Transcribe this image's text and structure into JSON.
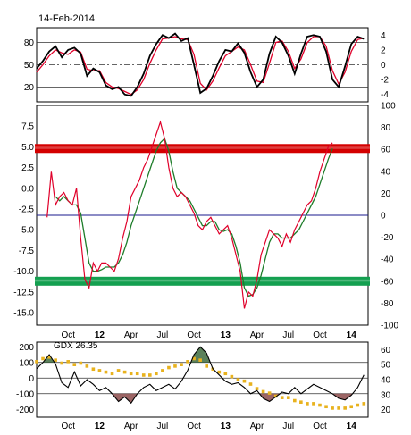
{
  "date_label": "14-Feb-2014",
  "legend_label": "GDX 26.35",
  "colors": {
    "black_line": "#000000",
    "red_line": "#e0002a",
    "green_line": "#1e7d2a",
    "red_band": "#d40000",
    "green_band": "#14a050",
    "zero_line": "#1a1a8c",
    "gold_dots": "#e8b21e",
    "fill_pos": "#3e6b3e",
    "fill_neg": "#8b4a4a"
  },
  "x_axis": {
    "labels": [
      {
        "text": "Oct",
        "month": 3,
        "bold": false
      },
      {
        "text": "12",
        "month": 6,
        "bold": true
      },
      {
        "text": "Apr",
        "month": 9,
        "bold": false
      },
      {
        "text": "Jul",
        "month": 12,
        "bold": false
      },
      {
        "text": "Oct",
        "month": 15,
        "bold": false
      },
      {
        "text": "13",
        "month": 18,
        "bold": true
      },
      {
        "text": "Apr",
        "month": 21,
        "bold": false
      },
      {
        "text": "Jul",
        "month": 24,
        "bold": false
      },
      {
        "text": "Oct",
        "month": 27,
        "bold": false
      },
      {
        "text": "14",
        "month": 30,
        "bold": true
      }
    ],
    "range": [
      0,
      31.6
    ]
  },
  "chart_data": [
    {
      "type": "line",
      "panel": "stochastic",
      "left_ticks": [
        "80",
        "50",
        "20"
      ],
      "right_ticks": [
        "4",
        "2",
        "0",
        "-2",
        "-4"
      ],
      "ylim": [
        0,
        100
      ],
      "ylim_right": [
        -5,
        5
      ],
      "hlines": [
        80,
        50,
        20
      ],
      "x": [
        0,
        0.6,
        1.2,
        1.8,
        2.4,
        3.0,
        3.6,
        4.2,
        4.8,
        5.4,
        6.0,
        6.6,
        7.2,
        7.8,
        8.4,
        9.0,
        9.6,
        10.2,
        10.8,
        11.4,
        12.0,
        12.6,
        13.2,
        13.8,
        14.4,
        15.0,
        15.6,
        16.2,
        16.8,
        17.4,
        18.0,
        18.6,
        19.2,
        19.8,
        20.4,
        21.0,
        21.6,
        22.2,
        22.8,
        23.4,
        24.0,
        24.6,
        25.2,
        25.8,
        26.4,
        27.0,
        27.6,
        28.2,
        28.8,
        29.4,
        30.0,
        30.6,
        31.2
      ],
      "series": [
        {
          "values": [
            45,
            55,
            68,
            75,
            60,
            70,
            73,
            65,
            35,
            45,
            40,
            22,
            17,
            20,
            10,
            8,
            20,
            38,
            62,
            78,
            90,
            86,
            92,
            82,
            86,
            50,
            12,
            18,
            35,
            55,
            70,
            68,
            79,
            66,
            40,
            20,
            30,
            65,
            88,
            80,
            62,
            38,
            65,
            88,
            90,
            88,
            68,
            30,
            20,
            48,
            78,
            88,
            85
          ]
        },
        {
          "values": [
            40,
            50,
            62,
            70,
            66,
            64,
            70,
            67,
            44,
            42,
            42,
            26,
            20,
            18,
            14,
            10,
            16,
            30,
            52,
            70,
            85,
            86,
            88,
            85,
            84,
            64,
            25,
            16,
            28,
            46,
            62,
            68,
            74,
            70,
            50,
            28,
            26,
            52,
            80,
            82,
            68,
            45,
            58,
            80,
            88,
            88,
            75,
            42,
            24,
            40,
            68,
            84,
            86
          ]
        }
      ]
    },
    {
      "type": "line",
      "panel": "momentum",
      "left_ticks": [
        "7.5",
        "5.0",
        "2.5",
        "0.0",
        "-2.5",
        "-5.0",
        "-7.5",
        "-10.0",
        "-12.5",
        "-15.0"
      ],
      "right_ticks": [
        "100",
        "80",
        "60",
        "40",
        "20",
        "0",
        "-20",
        "-40",
        "-60",
        "-80",
        "-100"
      ],
      "ylim": [
        -16.5,
        10
      ],
      "ylim_right": [
        -100,
        100
      ],
      "bands": [
        {
          "y": 4.8,
          "color_key": "red_band"
        },
        {
          "y": -11.2,
          "color_key": "green_band"
        }
      ],
      "zero_line_right": 0,
      "x": [
        1.0,
        1.4,
        1.8,
        2.2,
        2.6,
        3.0,
        3.4,
        3.8,
        4.2,
        4.6,
        5.0,
        5.4,
        5.8,
        6.2,
        6.6,
        7.0,
        7.4,
        7.8,
        8.2,
        8.6,
        9.0,
        9.4,
        9.8,
        10.2,
        10.6,
        11.0,
        11.4,
        11.8,
        12.2,
        12.6,
        13.0,
        13.4,
        13.8,
        14.2,
        14.6,
        15.0,
        15.4,
        15.8,
        16.2,
        16.6,
        17.0,
        17.4,
        17.8,
        18.2,
        18.6,
        19.0,
        19.4,
        19.8,
        20.2,
        20.6,
        21.0,
        21.4,
        21.8,
        22.2,
        22.6,
        23.0,
        23.4,
        23.8,
        24.2,
        24.6,
        25.0,
        25.4,
        25.8,
        26.2,
        26.6,
        27.0,
        27.4,
        27.8,
        28.2,
        28.6,
        29.0,
        29.4,
        29.8,
        30.2,
        30.6,
        31.0
      ],
      "series": [
        {
          "values": [
            -3.5,
            2.0,
            -2.0,
            -1.0,
            -0.5,
            -1.5,
            -2.0,
            0.0,
            -6.0,
            -11.0,
            -12.0,
            -9.0,
            -10.0,
            -9.0,
            -9.0,
            -9.5,
            -10.0,
            -8.5,
            -6.0,
            -4.0,
            -1.0,
            0.0,
            1.0,
            2.5,
            3.5,
            5.0,
            6.5,
            8.0,
            6.0,
            2.5,
            0.0,
            -1.0,
            -0.5,
            -1.0,
            -2.0,
            -3.0,
            -4.5,
            -5.0,
            -4.0,
            -3.5,
            -4.5,
            -5.5,
            -5.0,
            -4.5,
            -6.0,
            -8.0,
            -10.0,
            -14.5,
            -12.5,
            -13.0,
            -11.0,
            -8.0,
            -6.5,
            -5.0,
            -5.5,
            -6.0,
            -7.0,
            -5.5,
            -6.5,
            -5.0,
            -4.0,
            -3.0,
            -2.0,
            -1.5,
            0.0,
            2.0,
            3.5,
            5.0,
            5.5,
            null,
            null,
            null,
            null,
            null,
            null,
            null
          ]
        },
        {
          "values": [
            null,
            null,
            -1.0,
            -1.5,
            -1.0,
            -1.5,
            -2.0,
            -2.0,
            -3.0,
            -6.0,
            -9.0,
            -10.0,
            -10.0,
            -9.8,
            -9.5,
            -9.5,
            -9.5,
            -9.0,
            -8.0,
            -6.5,
            -4.5,
            -3.0,
            -1.5,
            0.0,
            1.5,
            3.0,
            4.5,
            5.5,
            6.0,
            4.5,
            2.0,
            0.0,
            -0.5,
            -1.0,
            -1.5,
            -2.5,
            -3.5,
            -4.5,
            -4.5,
            -4.0,
            -4.0,
            -5.0,
            -5.2,
            -5.0,
            -5.5,
            -7.0,
            -9.0,
            -12.0,
            -13.0,
            -12.8,
            -12.0,
            -10.5,
            -8.5,
            -6.5,
            -5.5,
            -5.5,
            -6.0,
            -6.0,
            -6.0,
            -5.5,
            -5.0,
            -4.0,
            -3.0,
            -2.0,
            -1.0,
            0.5,
            2.0,
            3.5,
            4.8,
            null,
            null,
            null,
            null,
            null,
            null,
            null
          ]
        }
      ]
    },
    {
      "type": "line",
      "panel": "oscillator",
      "left_ticks": [
        "200",
        "100",
        "0",
        "-100",
        "-200"
      ],
      "right_ticks": [
        "60",
        "50",
        "40",
        "30",
        "20"
      ],
      "ylim": [
        -250,
        230
      ],
      "ylim_right": [
        15,
        65
      ],
      "hlines": [
        100,
        0,
        -100
      ],
      "x": [
        0,
        0.6,
        1.2,
        1.8,
        2.4,
        3.0,
        3.6,
        4.2,
        4.8,
        5.4,
        6.0,
        6.6,
        7.2,
        7.8,
        8.4,
        9.0,
        9.6,
        10.2,
        10.8,
        11.4,
        12.0,
        12.6,
        13.2,
        13.8,
        14.4,
        15.0,
        15.6,
        16.2,
        16.8,
        17.4,
        18.0,
        18.6,
        19.2,
        19.8,
        20.4,
        21.0,
        21.6,
        22.2,
        22.8,
        23.4,
        24.0,
        24.6,
        25.2,
        25.8,
        26.4,
        27.0,
        27.6,
        28.2,
        28.8,
        29.4,
        30.0,
        30.6,
        31.2
      ],
      "series": [
        {
          "values": [
            60,
            100,
            150,
            90,
            -30,
            -60,
            40,
            -50,
            -10,
            -40,
            -80,
            -60,
            -100,
            -150,
            -120,
            -160,
            -100,
            -60,
            -40,
            -80,
            -60,
            -40,
            -70,
            -20,
            50,
            150,
            200,
            160,
            60,
            20,
            -20,
            -40,
            -30,
            -60,
            -100,
            -80,
            -130,
            -150,
            -120,
            -90,
            -100,
            -60,
            -100,
            -70,
            -40,
            -60,
            -80,
            -100,
            -130,
            -140,
            -110,
            -60,
            20
          ]
        },
        {
          "values": [
            52,
            54,
            55,
            53,
            51,
            52,
            50,
            51,
            49,
            47,
            46,
            45,
            44,
            46,
            45,
            44,
            44,
            43,
            43,
            44,
            46,
            48,
            49,
            50,
            52,
            54,
            53,
            49,
            47,
            45,
            44,
            42,
            40,
            39,
            37,
            34,
            32,
            31,
            29,
            28,
            28,
            26,
            25,
            24,
            24,
            23,
            22,
            21,
            21,
            21,
            22,
            23,
            24
          ]
        }
      ]
    }
  ]
}
